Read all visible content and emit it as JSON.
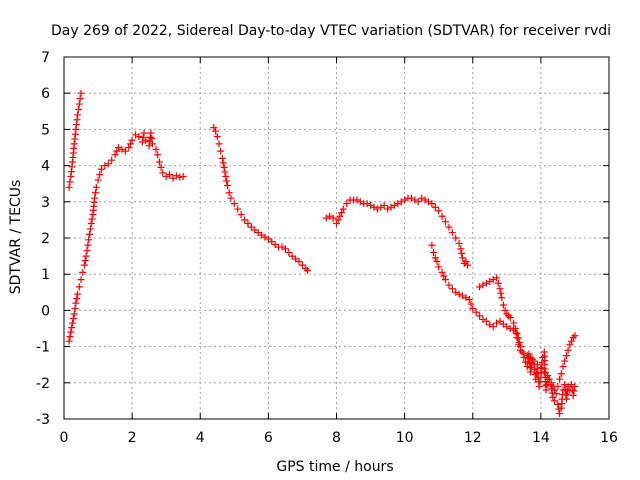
{
  "chart_data": {
    "type": "scatter",
    "title": "Day 269 of 2022, Sidereal Day-to-day VTEC variation (SDTVAR) for receiver rvdi",
    "xlabel": "GPS time / hours",
    "ylabel": "SDTVAR / TECUs",
    "xlim": [
      0,
      16
    ],
    "ylim": [
      -3,
      7
    ],
    "x_ticks": [
      "0",
      "2",
      "4",
      "6",
      "8",
      "10",
      "12",
      "14",
      "16"
    ],
    "y_ticks": [
      "-3",
      "-2",
      "-1",
      "0",
      "1",
      "2",
      "3",
      "4",
      "5",
      "6",
      "7"
    ],
    "grid": true,
    "marker": "plus",
    "color": "#ff0000",
    "series": [
      {
        "points": [
          [
            0.15,
            3.4
          ],
          [
            0.2,
            3.7
          ],
          [
            0.25,
            4.1
          ],
          [
            0.3,
            4.6
          ],
          [
            0.35,
            5.0
          ],
          [
            0.4,
            5.4
          ],
          [
            0.45,
            5.7
          ],
          [
            0.5,
            6.0
          ]
        ]
      },
      {
        "points": [
          [
            0.15,
            -0.85
          ],
          [
            0.2,
            -0.6
          ],
          [
            0.25,
            -0.35
          ],
          [
            0.3,
            -0.1
          ],
          [
            0.35,
            0.2
          ],
          [
            0.4,
            0.45
          ],
          [
            0.45,
            0.65
          ],
          [
            0.5,
            0.85
          ],
          [
            0.55,
            1.05
          ],
          [
            0.6,
            1.25
          ],
          [
            0.65,
            1.5
          ],
          [
            0.7,
            1.8
          ],
          [
            0.75,
            2.1
          ],
          [
            0.8,
            2.4
          ],
          [
            0.85,
            2.65
          ],
          [
            0.9,
            3.1
          ],
          [
            0.95,
            3.4
          ],
          [
            1.0,
            3.6
          ],
          [
            1.05,
            3.75
          ],
          [
            1.1,
            3.9
          ],
          [
            1.2,
            4.0
          ],
          [
            1.3,
            4.05
          ],
          [
            1.4,
            4.15
          ],
          [
            1.5,
            4.3
          ],
          [
            1.6,
            4.5
          ],
          [
            1.7,
            4.45
          ],
          [
            1.8,
            4.4
          ],
          [
            1.9,
            4.5
          ],
          [
            2.0,
            4.7
          ],
          [
            2.1,
            4.85
          ],
          [
            2.2,
            4.8
          ],
          [
            2.3,
            4.65
          ],
          [
            2.35,
            4.9
          ],
          [
            2.4,
            4.7
          ],
          [
            2.5,
            4.55
          ],
          [
            2.55,
            4.9
          ],
          [
            2.6,
            4.6
          ],
          [
            2.7,
            4.45
          ],
          [
            2.75,
            4.3
          ],
          [
            2.8,
            4.1
          ],
          [
            2.9,
            3.8
          ],
          [
            3.0,
            3.7
          ],
          [
            3.1,
            3.75
          ],
          [
            3.2,
            3.65
          ],
          [
            3.3,
            3.72
          ],
          [
            3.4,
            3.68
          ],
          [
            3.5,
            3.7
          ]
        ]
      },
      {
        "points": [
          [
            4.4,
            5.05
          ],
          [
            4.45,
            4.95
          ],
          [
            4.5,
            4.8
          ],
          [
            4.55,
            4.6
          ],
          [
            4.6,
            4.4
          ],
          [
            4.65,
            4.2
          ],
          [
            4.7,
            3.95
          ],
          [
            4.75,
            3.7
          ],
          [
            4.8,
            3.45
          ],
          [
            4.85,
            3.25
          ],
          [
            4.9,
            3.1
          ],
          [
            5.0,
            2.95
          ],
          [
            5.1,
            2.8
          ],
          [
            5.2,
            2.65
          ],
          [
            5.3,
            2.5
          ],
          [
            5.4,
            2.4
          ],
          [
            5.5,
            2.3
          ],
          [
            5.6,
            2.22
          ],
          [
            5.7,
            2.15
          ],
          [
            5.8,
            2.08
          ],
          [
            5.9,
            2.02
          ],
          [
            6.0,
            1.97
          ],
          [
            6.1,
            1.9
          ],
          [
            6.2,
            1.82
          ],
          [
            6.3,
            1.75
          ],
          [
            6.4,
            1.75
          ],
          [
            6.5,
            1.7
          ],
          [
            6.6,
            1.6
          ],
          [
            6.7,
            1.5
          ],
          [
            6.8,
            1.42
          ],
          [
            6.9,
            1.35
          ],
          [
            7.0,
            1.25
          ],
          [
            7.1,
            1.15
          ],
          [
            7.15,
            1.1
          ]
        ]
      },
      {
        "points": [
          [
            7.7,
            2.55
          ],
          [
            7.8,
            2.6
          ],
          [
            7.9,
            2.55
          ],
          [
            8.0,
            2.4
          ],
          [
            8.1,
            2.6
          ],
          [
            8.2,
            2.8
          ],
          [
            8.3,
            2.95
          ],
          [
            8.4,
            3.05
          ],
          [
            8.5,
            3.05
          ],
          [
            8.6,
            3.05
          ],
          [
            8.7,
            3.0
          ],
          [
            8.8,
            2.95
          ],
          [
            8.9,
            2.95
          ],
          [
            9.0,
            2.9
          ],
          [
            9.1,
            2.85
          ],
          [
            9.2,
            2.8
          ],
          [
            9.3,
            2.85
          ],
          [
            9.4,
            2.9
          ],
          [
            9.5,
            2.8
          ],
          [
            9.6,
            2.85
          ],
          [
            9.7,
            2.9
          ],
          [
            9.8,
            2.95
          ],
          [
            9.9,
            3.0
          ],
          [
            10.0,
            3.05
          ],
          [
            10.1,
            3.1
          ],
          [
            10.2,
            3.1
          ],
          [
            10.3,
            3.05
          ],
          [
            10.4,
            3.0
          ],
          [
            10.5,
            3.1
          ],
          [
            10.6,
            3.05
          ],
          [
            10.7,
            3.0
          ],
          [
            10.8,
            2.95
          ],
          [
            10.9,
            2.85
          ],
          [
            11.0,
            2.75
          ],
          [
            11.1,
            2.6
          ],
          [
            11.2,
            2.45
          ],
          [
            11.3,
            2.3
          ],
          [
            11.4,
            2.15
          ],
          [
            11.5,
            2.0
          ],
          [
            11.6,
            1.85
          ],
          [
            11.65,
            1.7
          ],
          [
            11.7,
            1.45
          ],
          [
            11.75,
            1.3
          ],
          [
            11.8,
            1.35
          ],
          [
            11.85,
            1.25
          ]
        ]
      },
      {
        "points": [
          [
            10.8,
            1.8
          ],
          [
            10.85,
            1.6
          ],
          [
            10.9,
            1.45
          ],
          [
            10.95,
            1.35
          ],
          [
            11.0,
            1.2
          ],
          [
            11.1,
            1.05
          ],
          [
            11.2,
            0.85
          ],
          [
            11.3,
            0.7
          ],
          [
            11.4,
            0.6
          ],
          [
            11.5,
            0.5
          ],
          [
            11.6,
            0.45
          ],
          [
            11.7,
            0.4
          ],
          [
            11.8,
            0.35
          ],
          [
            11.9,
            0.3
          ],
          [
            12.0,
            0.05
          ],
          [
            12.1,
            -0.05
          ],
          [
            12.2,
            -0.15
          ],
          [
            12.3,
            -0.25
          ],
          [
            12.4,
            -0.3
          ],
          [
            12.5,
            -0.4
          ],
          [
            12.6,
            -0.45
          ],
          [
            12.7,
            -0.35
          ],
          [
            12.8,
            -0.3
          ],
          [
            12.9,
            -0.38
          ],
          [
            13.0,
            -0.45
          ],
          [
            13.1,
            -0.5
          ],
          [
            13.2,
            -0.55
          ],
          [
            13.3,
            -0.65
          ],
          [
            13.4,
            -1.0
          ],
          [
            13.5,
            -1.3
          ],
          [
            13.6,
            -1.55
          ],
          [
            13.65,
            -1.2
          ],
          [
            13.7,
            -1.7
          ],
          [
            13.75,
            -1.35
          ],
          [
            13.8,
            -1.5
          ],
          [
            13.85,
            -1.9
          ],
          [
            13.9,
            -1.6
          ],
          [
            13.95,
            -2.1
          ],
          [
            14.0,
            -1.85
          ],
          [
            14.05,
            -1.3
          ],
          [
            14.1,
            -1.15
          ],
          [
            14.15,
            -2.2
          ],
          [
            14.2,
            -1.9
          ],
          [
            14.3,
            -2.05
          ],
          [
            14.35,
            -2.4
          ],
          [
            14.4,
            -2.5
          ],
          [
            14.5,
            -2.6
          ],
          [
            14.55,
            -2.85
          ],
          [
            14.6,
            -2.7
          ],
          [
            14.65,
            -2.2
          ],
          [
            14.7,
            -2.05
          ],
          [
            14.75,
            -2.45
          ],
          [
            14.8,
            -2.1
          ],
          [
            14.85,
            -2.2
          ],
          [
            14.9,
            -2.05
          ],
          [
            14.95,
            -2.35
          ],
          [
            15.0,
            -2.1
          ]
        ]
      },
      {
        "points": [
          [
            12.2,
            0.65
          ],
          [
            12.3,
            0.7
          ],
          [
            12.4,
            0.75
          ],
          [
            12.5,
            0.8
          ],
          [
            12.6,
            0.85
          ],
          [
            12.7,
            0.9
          ],
          [
            12.75,
            0.75
          ],
          [
            12.8,
            0.6
          ],
          [
            12.85,
            0.35
          ],
          [
            12.9,
            0.15
          ],
          [
            12.95,
            0.0
          ],
          [
            13.0,
            -0.1
          ],
          [
            13.05,
            -0.15
          ],
          [
            13.1,
            -0.2
          ],
          [
            13.2,
            -0.35
          ],
          [
            13.25,
            -0.5
          ],
          [
            13.3,
            -0.75
          ],
          [
            13.35,
            -0.95
          ],
          [
            13.4,
            -1.1
          ],
          [
            13.5,
            -1.2
          ],
          [
            13.6,
            -1.25
          ],
          [
            13.7,
            -1.3
          ],
          [
            13.8,
            -1.4
          ],
          [
            13.9,
            -1.5
          ],
          [
            14.0,
            -1.6
          ],
          [
            14.1,
            -1.7
          ],
          [
            14.2,
            -1.8
          ],
          [
            14.25,
            -1.9
          ],
          [
            14.3,
            -2.0
          ],
          [
            14.35,
            -2.1
          ],
          [
            14.4,
            -2.2
          ],
          [
            14.45,
            -2.3
          ],
          [
            14.5,
            -2.1
          ],
          [
            14.55,
            -1.9
          ],
          [
            14.6,
            -1.75
          ],
          [
            14.65,
            -1.55
          ],
          [
            14.7,
            -1.4
          ],
          [
            14.75,
            -1.25
          ],
          [
            14.8,
            -1.1
          ],
          [
            14.85,
            -0.95
          ],
          [
            14.9,
            -0.85
          ],
          [
            14.95,
            -0.75
          ],
          [
            15.0,
            -0.7
          ]
        ]
      }
    ]
  }
}
